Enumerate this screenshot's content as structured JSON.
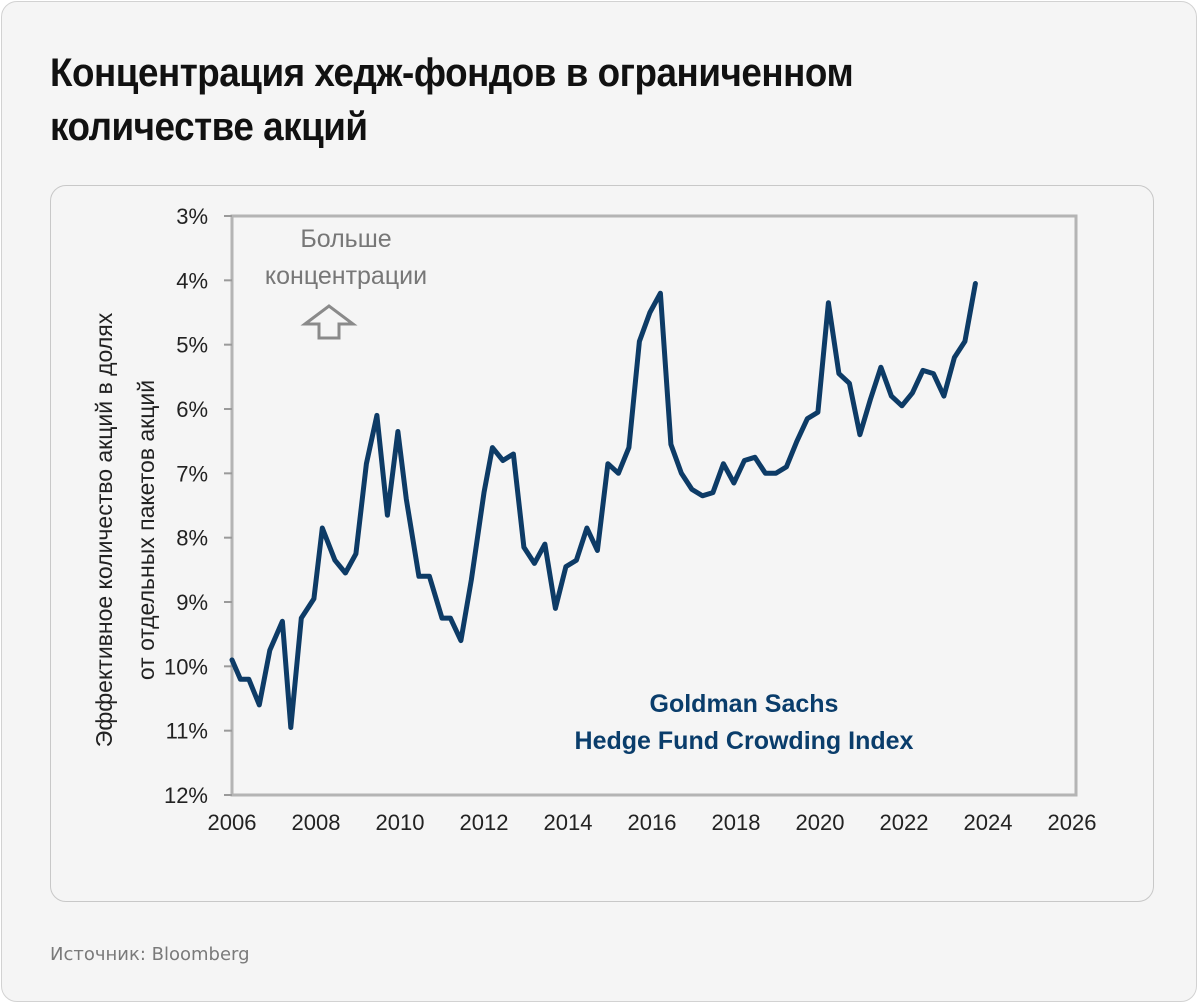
{
  "page": {
    "title": "Концентрация хедж-фондов в ограниченном количестве акций",
    "source": "Источник: Bloomberg"
  },
  "colors": {
    "line": "#0d3b66",
    "axis": "#9a9a9a",
    "annotation": "#777777",
    "legend_text": "#0a3d6b"
  },
  "chart_data": {
    "type": "line",
    "title": "",
    "xlabel": "",
    "ylabel_lines": [
      "Эффективное количество акций в долях",
      "от отдельных пакетов акций"
    ],
    "xlim": [
      2006,
      2026
    ],
    "ylim": [
      3,
      12
    ],
    "y_inverted": true,
    "x_ticks": [
      2006,
      2008,
      2010,
      2012,
      2014,
      2016,
      2018,
      2020,
      2022,
      2024,
      2026
    ],
    "x_tick_labels": [
      "2006",
      "2008",
      "2010",
      "2012",
      "2014",
      "2016",
      "2018",
      "2020",
      "2022",
      "2024",
      "2026"
    ],
    "y_ticks": [
      3,
      4,
      5,
      6,
      7,
      8,
      9,
      10,
      11,
      12
    ],
    "y_tick_labels": [
      "3%",
      "4%",
      "5%",
      "6%",
      "7%",
      "8%",
      "9%",
      "10%",
      "11%",
      "12%"
    ],
    "grid": false,
    "annotation": {
      "lines": [
        "Больше",
        "концентрации"
      ],
      "icon": "up-arrow-icon"
    },
    "legend": {
      "lines": [
        "Goldman Sachs",
        "Hedge Fund Crowding Index"
      ],
      "placement": "bottom-right"
    },
    "series": [
      {
        "name": "Goldman Sachs Hedge Fund Crowding Index",
        "x": [
          2006.0,
          2006.2,
          2006.4,
          2006.65,
          2006.9,
          2007.2,
          2007.4,
          2007.65,
          2007.95,
          2008.15,
          2008.45,
          2008.7,
          2008.95,
          2009.2,
          2009.45,
          2009.7,
          2009.95,
          2010.15,
          2010.45,
          2010.7,
          2011.0,
          2011.2,
          2011.45,
          2011.7,
          2012.0,
          2012.2,
          2012.45,
          2012.7,
          2012.95,
          2013.2,
          2013.45,
          2013.7,
          2013.95,
          2014.2,
          2014.45,
          2014.7,
          2014.95,
          2015.2,
          2015.45,
          2015.7,
          2015.95,
          2016.2,
          2016.45,
          2016.7,
          2016.95,
          2017.2,
          2017.45,
          2017.7,
          2017.95,
          2018.2,
          2018.45,
          2018.7,
          2018.95,
          2019.2,
          2019.45,
          2019.7,
          2019.95,
          2020.2,
          2020.45,
          2020.7,
          2020.95,
          2021.2,
          2021.45,
          2021.7,
          2021.95,
          2022.2,
          2022.45,
          2022.7,
          2022.95,
          2023.2,
          2023.45,
          2023.7
        ],
        "values": [
          9.9,
          10.2,
          10.2,
          10.6,
          9.75,
          9.3,
          10.95,
          9.25,
          8.95,
          7.85,
          8.35,
          8.55,
          8.25,
          6.85,
          6.1,
          7.65,
          6.35,
          7.4,
          8.6,
          8.6,
          9.25,
          9.25,
          9.6,
          8.65,
          7.3,
          6.6,
          6.8,
          6.7,
          8.15,
          8.4,
          8.1,
          9.1,
          8.45,
          8.35,
          7.85,
          8.2,
          6.85,
          7.0,
          6.6,
          4.95,
          4.5,
          4.2,
          6.55,
          7.0,
          7.25,
          7.35,
          7.3,
          6.85,
          7.15,
          6.8,
          6.75,
          7.0,
          7.0,
          6.9,
          6.5,
          6.15,
          6.05,
          4.35,
          5.45,
          5.6,
          6.4,
          5.85,
          5.35,
          5.8,
          5.95,
          5.75,
          5.4,
          5.45,
          5.8,
          5.2,
          4.95,
          4.05
        ]
      }
    ]
  }
}
